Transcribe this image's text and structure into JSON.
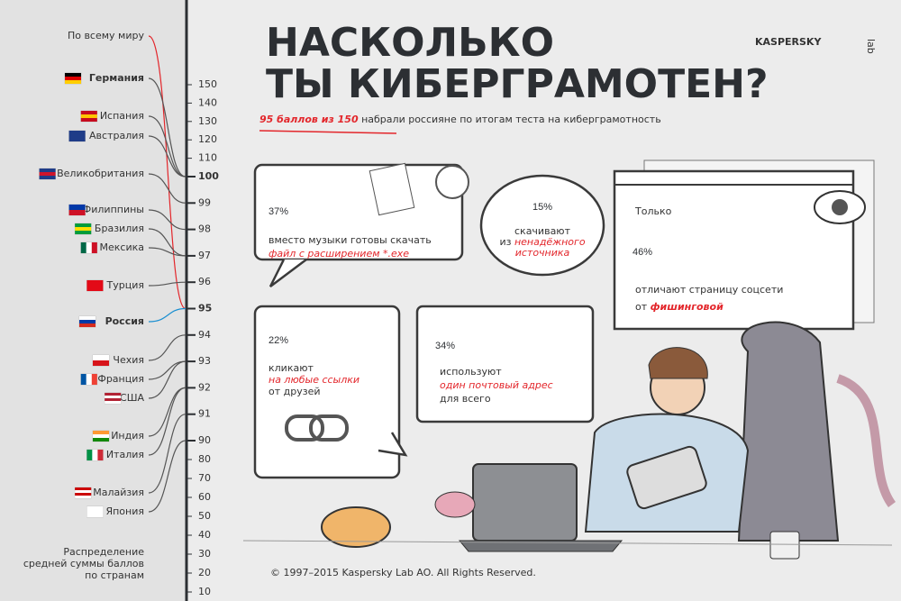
{
  "header": {
    "title": [
      "НАСКОЛЬКО",
      "ТЫ КИБЕРГРАМОТЕН?"
    ],
    "subtitle_highlight": "95 баллов из 150",
    "subtitle_rest": "набрали россияне по итогам теста на киберграмотность"
  },
  "logo": {
    "name": "KASPERSKY",
    "suffix": "lab"
  },
  "scale": {
    "ticks": [
      150,
      140,
      130,
      120,
      110,
      100,
      99,
      98,
      97,
      96,
      95,
      94,
      93,
      92,
      91,
      90,
      80,
      70,
      60,
      50,
      40,
      30,
      20,
      10
    ]
  },
  "countries": [
    {
      "name": "По всему миру",
      "score": 95,
      "color": "#e3262b"
    },
    {
      "name": "Германия",
      "score": 100,
      "flag": [
        "#000000",
        "#dd0000",
        "#ffce00"
      ]
    },
    {
      "name": "Испания",
      "score": 100,
      "flag": [
        "#c60b1e",
        "#ffc400",
        "#c60b1e"
      ]
    },
    {
      "name": "Австралия",
      "score": 100,
      "flag": [
        "#1f3c88",
        "#1f3c88",
        "#1f3c88"
      ]
    },
    {
      "name": "Великобритания",
      "score": 99,
      "flag": [
        "#1f3c88",
        "#cf142b",
        "#1f3c88"
      ]
    },
    {
      "name": "Филиппины",
      "score": 98,
      "flag": [
        "#0038a8",
        "#ce1126"
      ]
    },
    {
      "name": "Бразилия",
      "score": 97,
      "flag": [
        "#009c3b",
        "#ffdf00",
        "#009c3b"
      ]
    },
    {
      "name": "Мексика",
      "score": 97,
      "flag": [
        "#006847",
        "#ffffff",
        "#ce1126"
      ],
      "vertical": true
    },
    {
      "name": "Турция",
      "score": 96,
      "flag": [
        "#e30a17"
      ]
    },
    {
      "name": "Россия",
      "score": 95,
      "color": "#1b8fd1",
      "highlight": true,
      "flag": [
        "#ffffff",
        "#0039a6",
        "#d52b1e"
      ]
    },
    {
      "name": "Чехия",
      "score": 94,
      "flag": [
        "#ffffff",
        "#d7141a"
      ]
    },
    {
      "name": "Франция",
      "score": 93,
      "flag": [
        "#0055a4",
        "#ffffff",
        "#ef4135"
      ],
      "vertical": true
    },
    {
      "name": "США",
      "score": 93,
      "flag": [
        "#b22234",
        "#ffffff",
        "#b22234",
        "#ffffff"
      ]
    },
    {
      "name": "Индия",
      "score": 92,
      "flag": [
        "#ff9933",
        "#ffffff",
        "#138808"
      ]
    },
    {
      "name": "Италия",
      "score": 92,
      "flag": [
        "#009246",
        "#ffffff",
        "#ce2b37"
      ],
      "vertical": true
    },
    {
      "name": "Малайзия",
      "score": 91,
      "flag": [
        "#cc0001",
        "#ffffff",
        "#cc0001",
        "#ffffff"
      ]
    },
    {
      "name": "Япония",
      "score": 90,
      "flag": [
        "#ffffff"
      ]
    }
  ],
  "scale_note": [
    "Распределение",
    "средней суммы баллов",
    "по странам"
  ],
  "cards": {
    "music": {
      "percent": "37%",
      "text": "вместо музыки готовы скачать",
      "highlight": "файл с расширением *.exe"
    },
    "source": {
      "percent": "15%",
      "text": "скачивают",
      "prefix": "из",
      "highlight": [
        "ненадёжного",
        "источника"
      ]
    },
    "phishing": {
      "intro": "Только",
      "percent": "46%",
      "text": "отличают страницу соцсети",
      "prefix": "от",
      "highlight": "фишинговой"
    },
    "links": {
      "percent": "22%",
      "text": "кликают",
      "highlight": "на любые ссылки",
      "suffix": "от друзей"
    },
    "email": {
      "percent": "34%",
      "text": "используют",
      "highlight": "один почтовый адрес",
      "suffix": "для всего"
    }
  },
  "footer": "© 1997–2015 Kaspersky Lab AO. All Rights Reserved."
}
